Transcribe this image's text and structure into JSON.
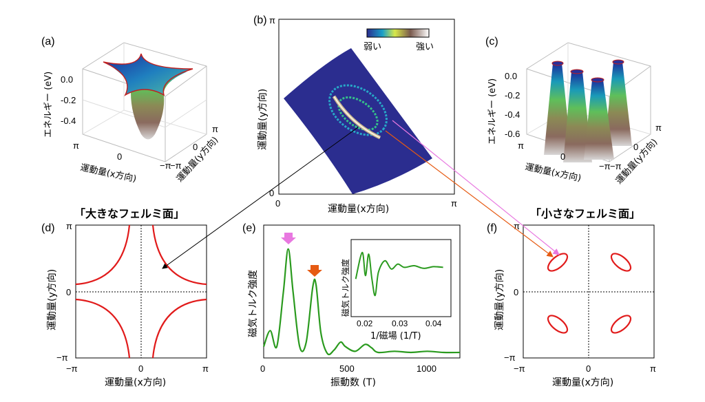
{
  "panels": {
    "a": {
      "label": "(a)",
      "zlabel": "エネルギー (eV)",
      "zticks": [
        "0.0",
        "-0.2",
        "-0.4"
      ],
      "xlabel": "運動量(x方向)",
      "ylabel": "運動量(y方向)",
      "xticks": [
        "π",
        "0",
        "−π"
      ],
      "yticks": [
        "−π",
        "0",
        "π"
      ]
    },
    "b": {
      "label": "(b)",
      "xlabel": "運動量(x方向)",
      "ylabel": "運動量(y方向)",
      "xticks": [
        "0",
        "π"
      ],
      "yticks": [
        "0",
        "π"
      ],
      "colorbar": {
        "low": "弱い",
        "high": "強い"
      }
    },
    "c": {
      "label": "(c)",
      "zlabel": "エネルギー (eV)",
      "zticks": [
        "0.0",
        "-0.2",
        "-0.4",
        "-0.6"
      ],
      "xlabel": "運動量(x方向)",
      "ylabel": "運動量(y方向)",
      "xticks": [
        "π",
        "0",
        "−π"
      ],
      "yticks": [
        "−π",
        "0",
        "π"
      ]
    },
    "d": {
      "label": "(d)",
      "caption": "「大きなフェルミ面」",
      "xlabel": "運動量(x方向)",
      "ylabel": "運動量(y方向)",
      "xticks": [
        "−π",
        "0",
        "π"
      ],
      "yticks": [
        "−π",
        "0",
        "π"
      ]
    },
    "e": {
      "label": "(e)",
      "xlabel": "振動数 (T)",
      "ylabel": "磁気トルク強度",
      "xticks": [
        "0",
        "500",
        "1000"
      ],
      "inset": {
        "xlabel": "1/磁場 (1/T)",
        "ylabel": "磁気トルク強度",
        "xticks": [
          "0.02",
          "0.03",
          "0.04"
        ]
      }
    },
    "f": {
      "label": "(f)",
      "caption": "「小さなフェルミ面」",
      "xlabel": "運動量(x方向)",
      "ylabel": "運動量(y方向)",
      "xticks": [
        "−π",
        "0",
        "π"
      ],
      "yticks": [
        "−π",
        "0",
        "π"
      ]
    }
  },
  "colors": {
    "curve_red": "#e11b1b",
    "curve_green": "#2a9a1e",
    "arrow_pink": "#e878e0",
    "arrow_orange": "#e65a12",
    "map_blue": "#2b2d8f"
  },
  "chart_data": [
    {
      "type": "line",
      "panel": "e",
      "x": [
        0,
        40,
        80,
        120,
        150,
        180,
        220,
        260,
        300,
        320,
        350,
        390,
        430,
        470,
        500,
        560,
        620,
        660,
        700,
        800,
        900,
        1000,
        1100,
        1200
      ],
      "y": [
        0.08,
        0.22,
        0.08,
        0.55,
        0.93,
        0.55,
        0.08,
        0.12,
        0.6,
        0.62,
        0.2,
        0.02,
        0.05,
        0.12,
        0.08,
        0.04,
        0.1,
        0.07,
        0.03,
        0.04,
        0.03,
        0.04,
        0.03,
        0.03
      ],
      "xlim": [
        0,
        1200
      ],
      "xlabel": "振動数 (T)",
      "ylabel": "磁気トルク強度",
      "peaks": [
        150,
        320
      ]
    },
    {
      "type": "line",
      "panel": "e-inset",
      "x": [
        0.016,
        0.018,
        0.019,
        0.02,
        0.021,
        0.022,
        0.023,
        0.025,
        0.027,
        0.029,
        0.031,
        0.034,
        0.037,
        0.04,
        0.043
      ],
      "y": [
        0.1,
        0.9,
        0.2,
        0.85,
        0.1,
        -0.4,
        0.3,
        0.65,
        0.4,
        0.55,
        0.45,
        0.5,
        0.42,
        0.47,
        0.45
      ],
      "xlim": [
        0.015,
        0.045
      ],
      "xlabel": "1/磁場 (1/T)",
      "ylabel": "磁気トルク強度"
    }
  ]
}
